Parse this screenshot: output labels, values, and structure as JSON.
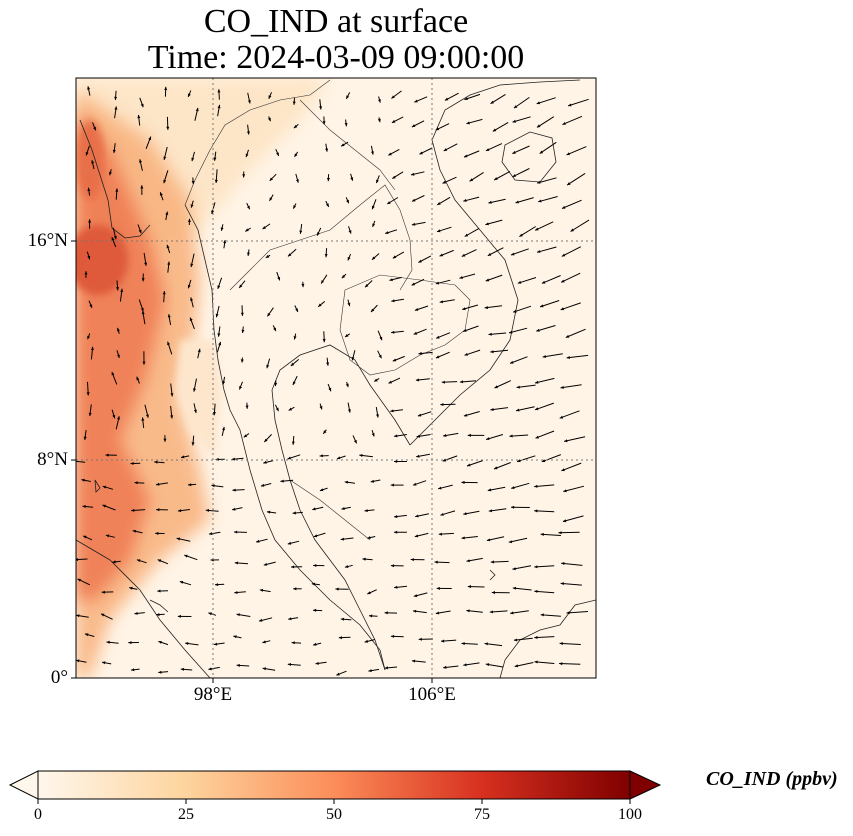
{
  "title": {
    "line1": "CO_IND at surface",
    "line2": "Time: 2024-03-09 09:00:00"
  },
  "map": {
    "lat_labels": [
      "16°N",
      "8°N",
      "0°"
    ],
    "lon_labels": [
      "98°E",
      "106°E"
    ],
    "extent": {
      "lon_min": 93,
      "lon_max": 112,
      "lat_min": 0,
      "lat_max": 22
    },
    "gridlines": {
      "lons": [
        98,
        106
      ],
      "lats": [
        8,
        16
      ],
      "style": "dotted"
    },
    "field": "CO_IND",
    "vectors": "wind arrows"
  },
  "colorbar": {
    "label": "CO_IND (ppbv)",
    "ticks": [
      "0",
      "25",
      "50",
      "75",
      "100"
    ],
    "range": [
      0,
      100
    ],
    "colormap": "OrRd",
    "colors": [
      "#fff7ec",
      "#fdd49e",
      "#fc8d59",
      "#d7301f",
      "#7f0000"
    ],
    "extend": "both"
  }
}
